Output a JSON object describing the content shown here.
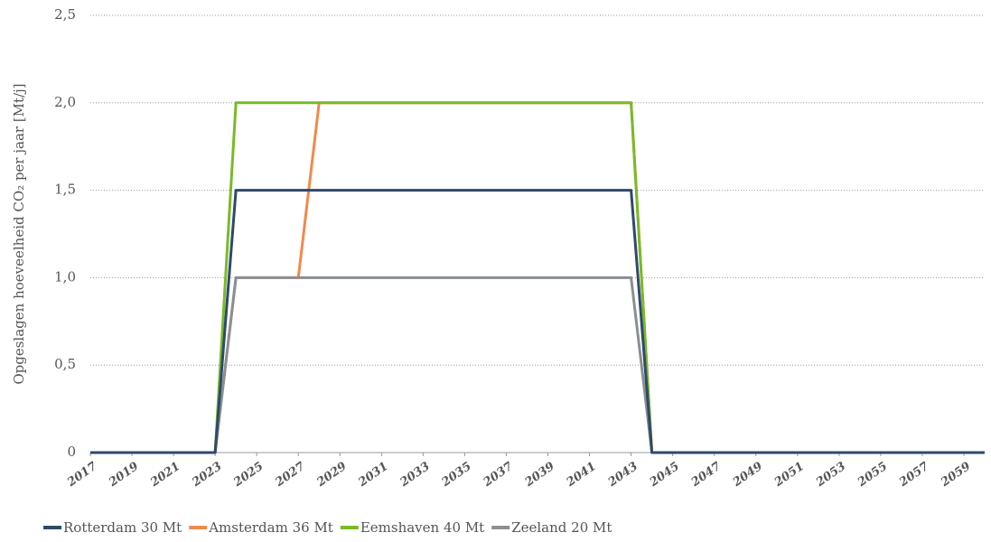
{
  "chart_data": {
    "type": "line",
    "y_label": "Opgeslagen hoeveelheid CO₂ per jaar [Mt/j]",
    "x": [
      2017,
      2018,
      2019,
      2020,
      2021,
      2022,
      2023,
      2024,
      2025,
      2026,
      2027,
      2028,
      2029,
      2030,
      2031,
      2032,
      2033,
      2034,
      2035,
      2036,
      2037,
      2038,
      2039,
      2040,
      2041,
      2042,
      2043,
      2044,
      2045,
      2046,
      2047,
      2048,
      2049,
      2050,
      2051,
      2052,
      2053,
      2054,
      2055,
      2056,
      2057,
      2058,
      2059,
      2060
    ],
    "xlim": [
      2017,
      2060
    ],
    "xticks": [
      2017,
      2019,
      2021,
      2023,
      2025,
      2027,
      2029,
      2031,
      2033,
      2035,
      2037,
      2039,
      2041,
      2043,
      2045,
      2047,
      2049,
      2051,
      2053,
      2055,
      2057,
      2059
    ],
    "ylim": [
      0,
      2.5
    ],
    "yticks": [
      0,
      {
        "value": 0.5,
        "label": "0,5"
      },
      {
        "value": 1,
        "label": "1,0"
      },
      {
        "value": 1.5,
        "label": "1,5"
      },
      {
        "value": 2,
        "label": "2,0"
      },
      {
        "value": 2.5,
        "label": "2,5"
      }
    ],
    "grid": true,
    "legend": "bottom",
    "series": [
      {
        "name": "Rotterdam 30 Mt",
        "color": "#2e4a6b",
        "values": [
          0,
          0,
          0,
          0,
          0,
          0,
          0,
          1.5,
          1.5,
          1.5,
          1.5,
          1.5,
          1.5,
          1.5,
          1.5,
          1.5,
          1.5,
          1.5,
          1.5,
          1.5,
          1.5,
          1.5,
          1.5,
          1.5,
          1.5,
          1.5,
          1.5,
          0,
          0,
          0,
          0,
          0,
          0,
          0,
          0,
          0,
          0,
          0,
          0,
          0,
          0,
          0,
          0,
          0
        ]
      },
      {
        "name": "Amsterdam 36 Mt",
        "color": "#f08a4b",
        "values": [
          0,
          0,
          0,
          0,
          0,
          0,
          0,
          1,
          1,
          1,
          1,
          2,
          2,
          2,
          2,
          2,
          2,
          2,
          2,
          2,
          2,
          2,
          2,
          2,
          2,
          2,
          2,
          0,
          0,
          0,
          0,
          0,
          0,
          0,
          0,
          0,
          0,
          0,
          0,
          0,
          0,
          0,
          0,
          0
        ]
      },
      {
        "name": "Eemshaven 40 Mt",
        "color": "#7ab929",
        "values": [
          0,
          0,
          0,
          0,
          0,
          0,
          0,
          2,
          2,
          2,
          2,
          2,
          2,
          2,
          2,
          2,
          2,
          2,
          2,
          2,
          2,
          2,
          2,
          2,
          2,
          2,
          2,
          0,
          0,
          0,
          0,
          0,
          0,
          0,
          0,
          0,
          0,
          0,
          0,
          0,
          0,
          0,
          0,
          0
        ]
      },
      {
        "name": "Zeeland 20 Mt",
        "color": "#8a8f93",
        "values": [
          0,
          0,
          0,
          0,
          0,
          0,
          0,
          1,
          1,
          1,
          1,
          1,
          1,
          1,
          1,
          1,
          1,
          1,
          1,
          1,
          1,
          1,
          1,
          1,
          1,
          1,
          1,
          0,
          0,
          0,
          0,
          0,
          0,
          0,
          0,
          0,
          0,
          0,
          0,
          0,
          0,
          0,
          0,
          0
        ]
      }
    ]
  }
}
